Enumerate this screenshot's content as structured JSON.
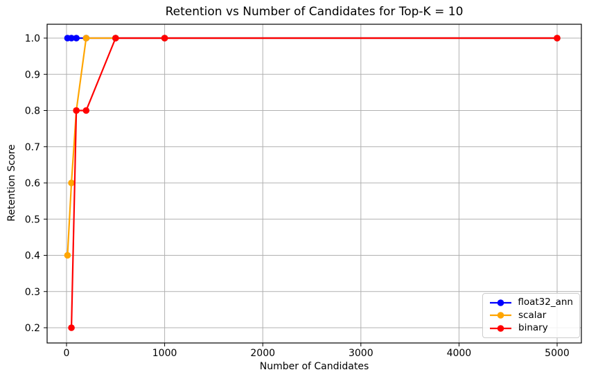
{
  "chart_data": {
    "type": "line",
    "title": "Retention vs Number of Candidates for Top-K = 10",
    "xlabel": "Number of Candidates",
    "ylabel": "Retention Score",
    "series": [
      {
        "name": "float32_ann",
        "color": "#0000ff",
        "x": [
          10,
          50,
          100,
          200,
          500,
          1000,
          5000
        ],
        "y": [
          1.0,
          1.0,
          1.0,
          1.0,
          1.0,
          1.0,
          1.0
        ]
      },
      {
        "name": "scalar",
        "color": "#ffa500",
        "x": [
          10,
          50,
          100,
          200,
          500,
          1000,
          5000
        ],
        "y": [
          0.4,
          0.6,
          0.8,
          1.0,
          1.0,
          1.0,
          1.0
        ]
      },
      {
        "name": "binary",
        "color": "#ff0000",
        "x": [
          50,
          100,
          200,
          500,
          1000,
          5000
        ],
        "y": [
          0.2,
          0.8,
          0.8,
          1.0,
          1.0,
          1.0
        ]
      }
    ],
    "xticks": {
      "values": [
        0,
        1000,
        2000,
        3000,
        4000,
        5000
      ],
      "labels": [
        "0",
        "1000",
        "2000",
        "3000",
        "4000",
        "5000"
      ]
    },
    "yticks": {
      "values": [
        0.2,
        0.3,
        0.4,
        0.5,
        0.6,
        0.7,
        0.8,
        0.9,
        1.0
      ],
      "labels": [
        "0.2",
        "0.3",
        "0.4",
        "0.5",
        "0.6",
        "0.7",
        "0.8",
        "0.9",
        "1.0"
      ]
    },
    "grid": true,
    "legend_position": "lower right",
    "grid_color": "#b0b0b0",
    "spine_color": "#000000",
    "background": "#ffffff"
  }
}
